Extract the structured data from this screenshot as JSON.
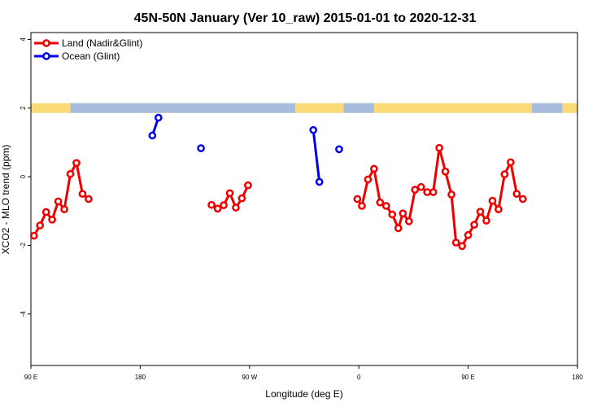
{
  "chart_data": {
    "type": "line",
    "title": "45N-50N January (Ver 10_raw)   2015-01-01 to 2020-12-31",
    "xlabel": "Longitude (deg E)",
    "ylabel": "XCO2 - MLO trend (ppm)",
    "xlim": [
      90,
      450
    ],
    "ylim": [
      -5.5,
      4.2
    ],
    "x_ticks": [
      {
        "value": 90,
        "label": "90 E"
      },
      {
        "value": 162,
        "label": "180"
      },
      {
        "value": 234,
        "label": "90 W"
      },
      {
        "value": 306,
        "label": "0"
      },
      {
        "value": 378,
        "label": "90 E"
      },
      {
        "value": 450,
        "label": "180"
      }
    ],
    "y_ticks": [
      {
        "value": -4,
        "label": "-4"
      },
      {
        "value": -2,
        "label": "-2"
      },
      {
        "value": 0,
        "label": "0"
      },
      {
        "value": 2,
        "label": "2"
      },
      {
        "value": 4,
        "label": "4"
      }
    ],
    "grid": false,
    "legend_position": "top-left",
    "map_strip": {
      "y_center": 2.0,
      "land_color": "#FADB78",
      "ocean_color": "#A7BCDF"
    },
    "series": [
      {
        "name": "Land (Nadir&Glint)",
        "color": "#EE0000",
        "segments": [
          [
            [
              92,
              -1.72
            ],
            [
              96,
              -1.42
            ],
            [
              100,
              -1.03
            ],
            [
              104,
              -1.25
            ],
            [
              108,
              -0.72
            ],
            [
              112,
              -0.95
            ],
            [
              116,
              0.08
            ],
            [
              120,
              0.4
            ],
            [
              124,
              -0.5
            ],
            [
              128,
              -0.65
            ]
          ],
          [
            [
              209,
              -0.82
            ],
            [
              213,
              -0.93
            ],
            [
              217,
              -0.83
            ],
            [
              221,
              -0.48
            ],
            [
              225,
              -0.9
            ],
            [
              229,
              -0.63
            ],
            [
              233,
              -0.25
            ]
          ],
          [
            [
              305,
              -0.65
            ],
            [
              308,
              -0.85
            ],
            [
              312,
              -0.08
            ],
            [
              316,
              0.23
            ],
            [
              320,
              -0.75
            ],
            [
              324,
              -0.85
            ],
            [
              328,
              -1.1
            ],
            [
              332,
              -1.5
            ],
            [
              335,
              -1.07
            ],
            [
              339,
              -1.3
            ],
            [
              343,
              -0.38
            ],
            [
              347,
              -0.3
            ],
            [
              351,
              -0.45
            ],
            [
              355,
              -0.45
            ],
            [
              359,
              0.84
            ],
            [
              363,
              0.15
            ],
            [
              367,
              -0.52
            ],
            [
              370,
              -1.92
            ],
            [
              374,
              -2.02
            ],
            [
              378,
              -1.7
            ],
            [
              382,
              -1.4
            ],
            [
              386,
              -1.02
            ],
            [
              390,
              -1.28
            ],
            [
              394,
              -0.7
            ],
            [
              398,
              -0.95
            ],
            [
              402,
              0.07
            ],
            [
              406,
              0.42
            ],
            [
              410,
              -0.5
            ],
            [
              414,
              -0.65
            ]
          ]
        ]
      },
      {
        "name": "Ocean (Glint)",
        "color": "#0000EE",
        "segments": [
          [
            [
              170,
              1.2
            ],
            [
              174,
              1.72
            ]
          ],
          [
            [
              202,
              0.83
            ]
          ],
          [
            [
              276,
              1.36
            ],
            [
              280,
              -0.15
            ]
          ],
          [
            [
              293,
              0.8
            ]
          ]
        ]
      }
    ]
  }
}
